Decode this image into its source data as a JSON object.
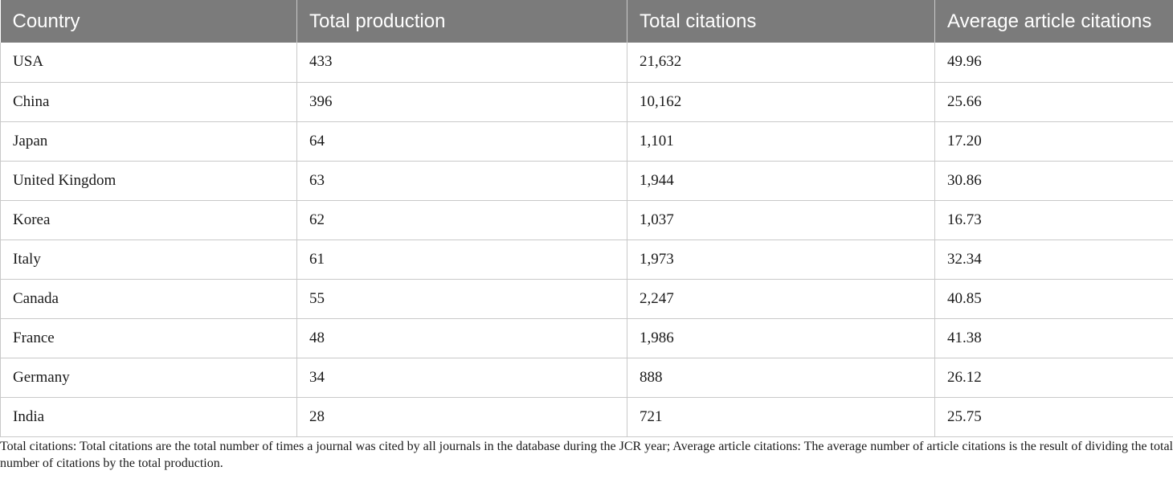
{
  "table": {
    "headers": [
      "Country",
      "Total production",
      "Total citations",
      "Average article citations"
    ],
    "rows": [
      [
        "USA",
        "433",
        "21,632",
        "49.96"
      ],
      [
        "China",
        "396",
        "10,162",
        "25.66"
      ],
      [
        "Japan",
        "64",
        "1,101",
        "17.20"
      ],
      [
        "United Kingdom",
        "63",
        "1,944",
        "30.86"
      ],
      [
        "Korea",
        "62",
        "1,037",
        "16.73"
      ],
      [
        "Italy",
        "61",
        "1,973",
        "32.34"
      ],
      [
        "Canada",
        "55",
        "2,247",
        "40.85"
      ],
      [
        "France",
        "48",
        "1,986",
        "41.38"
      ],
      [
        "Germany",
        "34",
        "888",
        "26.12"
      ],
      [
        "India",
        "28",
        "721",
        "25.75"
      ]
    ]
  },
  "footnote": "Total citations: Total citations are the total number of times a journal was cited by all journals in the database during the JCR year; Average article citations: The average number of article citations is the result of dividing the total number of citations by the total production.",
  "colors": {
    "header_bg": "#7b7b7b",
    "header_text": "#ffffff",
    "grid": "#c9c9c9"
  }
}
